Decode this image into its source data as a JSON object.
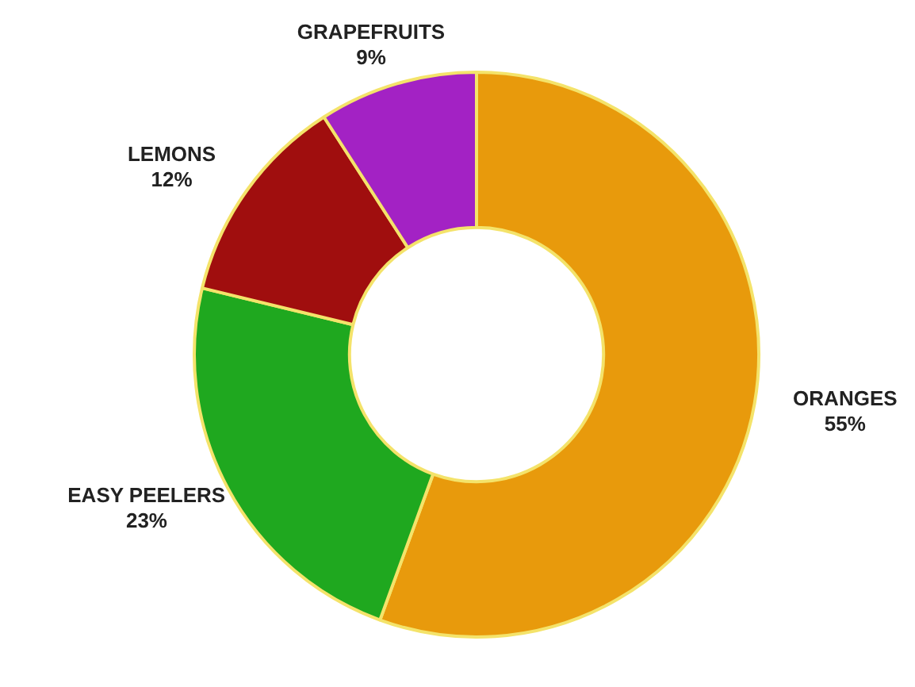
{
  "chart_data": {
    "type": "donut",
    "categories": [
      "ORANGES",
      "EASY PEELERS",
      "LEMONS",
      "GRAPEFRUITS"
    ],
    "values": [
      55,
      23,
      12,
      9
    ],
    "value_labels": [
      "55%",
      "23%",
      "12%",
      "9%"
    ],
    "colors": [
      "#e89a0c",
      "#1fa81f",
      "#a00e0e",
      "#a322c4"
    ]
  }
}
